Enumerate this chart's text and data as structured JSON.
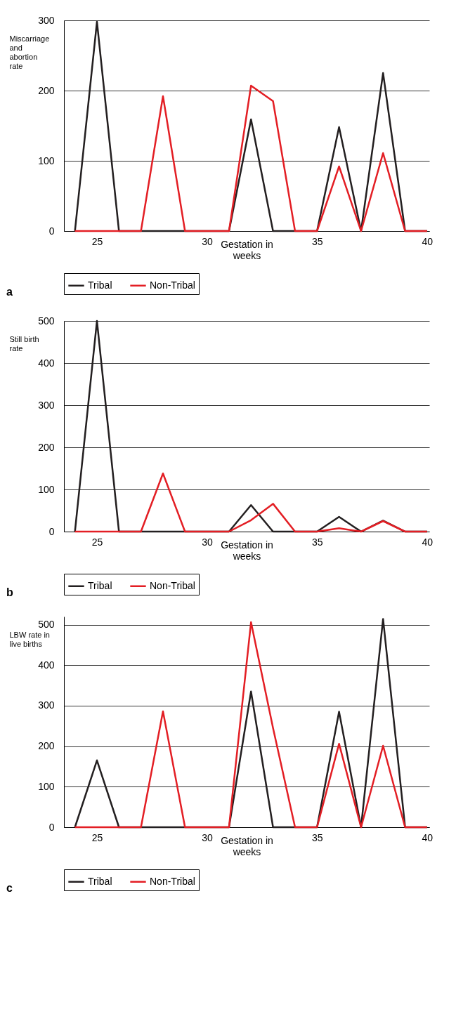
{
  "chart_data": [
    {
      "type": "line",
      "ylabel": "Miscarriage and abortion rate",
      "xlabel": "Gestation in weeks",
      "annotations": [
        "a"
      ],
      "x": [
        24,
        25,
        26,
        27,
        28,
        29,
        30,
        31,
        32,
        33,
        34,
        35,
        36,
        37,
        38,
        39,
        40
      ],
      "xlim": [
        23.5,
        40.1
      ],
      "xticks": [
        25,
        30,
        35,
        40
      ],
      "ylim": [
        0,
        300
      ],
      "yticks": [
        0,
        100,
        200,
        300
      ],
      "grid": "y",
      "legend": "bottom",
      "marker": "none",
      "line_style": "solid",
      "series": [
        {
          "name": "Tribal",
          "color": "#231f20",
          "values": [
            0,
            298,
            0,
            0,
            0,
            0,
            0,
            0,
            159,
            0,
            0,
            0,
            148,
            0,
            225,
            0,
            0
          ]
        },
        {
          "name": "Non-Tribal",
          "color": "#e31e24",
          "values": [
            0,
            0,
            0,
            0,
            192,
            0,
            0,
            0,
            207,
            185,
            0,
            0,
            92,
            0,
            111,
            0,
            0
          ]
        }
      ]
    },
    {
      "type": "line",
      "ylabel": "Still birth rate",
      "xlabel": "Gestation in weeks",
      "annotations": [
        "b"
      ],
      "x": [
        24,
        25,
        26,
        27,
        28,
        29,
        30,
        31,
        32,
        33,
        34,
        35,
        36,
        37,
        38,
        39,
        40
      ],
      "xlim": [
        23.5,
        40.1
      ],
      "xticks": [
        25,
        30,
        35,
        40
      ],
      "ylim": [
        0,
        500
      ],
      "yticks": [
        0,
        100,
        200,
        300,
        400,
        500
      ],
      "grid": "y",
      "legend": "bottom",
      "marker": "none",
      "line_style": "solid",
      "series": [
        {
          "name": "Tribal",
          "color": "#231f20",
          "values": [
            0,
            500,
            0,
            0,
            0,
            0,
            0,
            0,
            63,
            0,
            0,
            0,
            35,
            0,
            26,
            0,
            0
          ]
        },
        {
          "name": "Non-Tribal",
          "color": "#e31e24",
          "values": [
            0,
            0,
            0,
            0,
            138,
            0,
            0,
            0,
            27,
            66,
            0,
            0,
            8,
            0,
            25,
            0,
            0
          ]
        }
      ]
    },
    {
      "type": "line",
      "ylabel": "LBW rate in live births",
      "xlabel": "Gestation in weeks",
      "annotations": [
        "c"
      ],
      "x": [
        24,
        25,
        26,
        27,
        28,
        29,
        30,
        31,
        32,
        33,
        34,
        35,
        36,
        37,
        38,
        39,
        40
      ],
      "xlim": [
        23.5,
        40.1
      ],
      "xticks": [
        25,
        30,
        35,
        40
      ],
      "ylim": [
        0,
        520
      ],
      "yticks": [
        0,
        100,
        200,
        300,
        400,
        500
      ],
      "grid": "y",
      "legend": "bottom",
      "marker": "none",
      "line_style": "solid",
      "series": [
        {
          "name": "Tribal",
          "color": "#231f20",
          "values": [
            0,
            165,
            0,
            0,
            0,
            0,
            0,
            0,
            335,
            0,
            0,
            0,
            285,
            0,
            514,
            0,
            0
          ]
        },
        {
          "name": "Non-Tribal",
          "color": "#e31e24",
          "values": [
            0,
            0,
            0,
            0,
            286,
            0,
            0,
            0,
            506,
            245,
            0,
            0,
            206,
            0,
            201,
            0,
            0
          ]
        }
      ]
    }
  ]
}
